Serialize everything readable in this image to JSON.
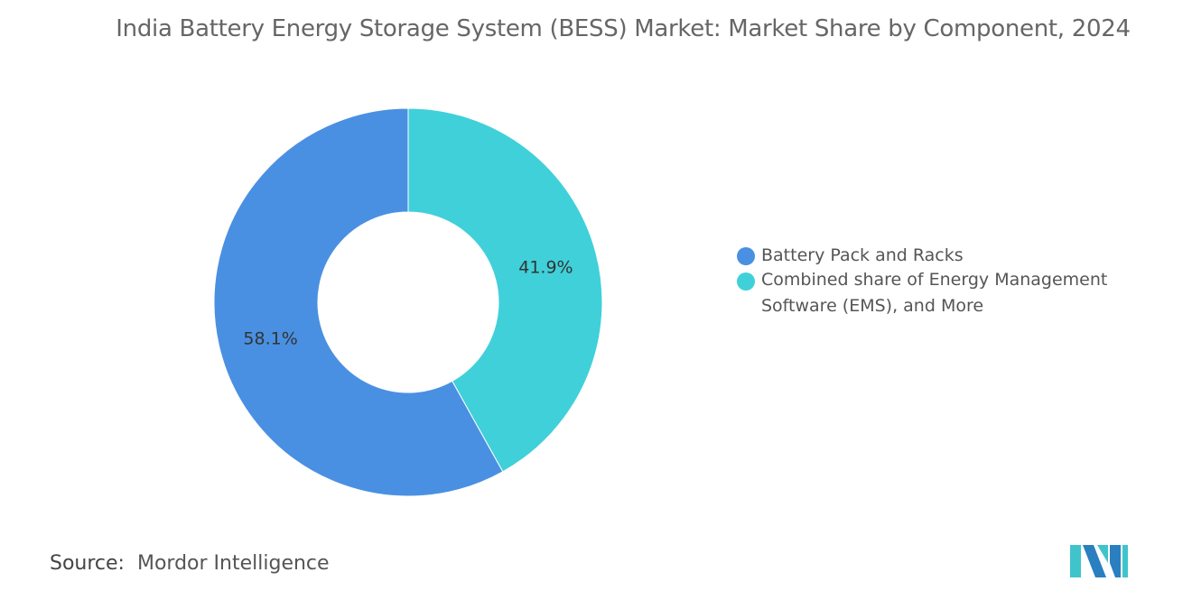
{
  "chart_data": {
    "type": "pie",
    "donut": true,
    "title": "India Battery Energy Storage System (BESS) Market: Market Share by Component, 2024",
    "categories": [
      "Combined share of Energy Management Software (EMS), and More",
      "Battery Pack and Racks"
    ],
    "values": [
      41.9,
      58.1
    ],
    "labels": [
      "41.9%",
      "58.1%"
    ],
    "colors": [
      "#40d0da",
      "#4a90e2"
    ],
    "legend_placement": "right",
    "legend": [
      "Battery Pack and Racks",
      "Combined share of Energy Management Software (EMS), and More"
    ],
    "legend_colors": [
      "#4a90e2",
      "#40d0da"
    ]
  },
  "source": {
    "label": "Source:",
    "value": "Mordor Intelligence"
  }
}
